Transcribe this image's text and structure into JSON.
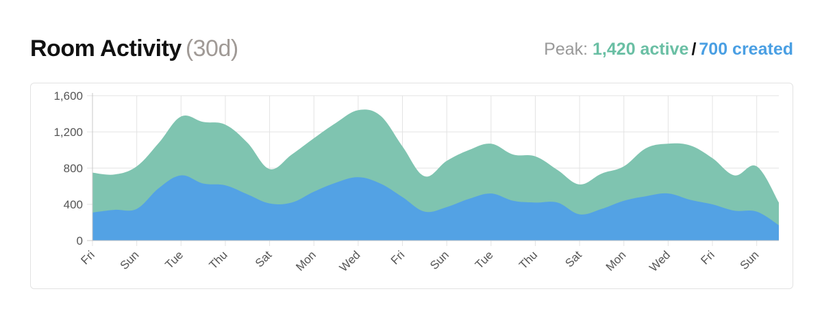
{
  "header": {
    "title": "Room Activity",
    "range": "(30d)",
    "peak_label": "Peak:",
    "peak_active": "1,420 active",
    "peak_sep": "/",
    "peak_created": "700 created"
  },
  "colors": {
    "active": "#7fc4b0",
    "created": "#53a2e4",
    "active_text": "#6abfa4",
    "created_text": "#4a9fe3"
  },
  "chart_data": {
    "type": "area",
    "title": "Room Activity",
    "xlabel": "",
    "ylabel": "",
    "ylim": [
      0,
      1600
    ],
    "yticks": [
      0,
      400,
      800,
      1200,
      1600
    ],
    "ytick_labels": [
      "0",
      "400",
      "800",
      "1,200",
      "1,600"
    ],
    "grid": true,
    "categories": [
      "Fri",
      "Sat",
      "Sun",
      "Mon",
      "Tue",
      "Wed",
      "Thu",
      "Fri",
      "Sat",
      "Sun",
      "Mon",
      "Tue",
      "Wed",
      "Thu",
      "Fri",
      "Sat",
      "Sun",
      "Mon",
      "Tue",
      "Wed",
      "Thu",
      "Fri",
      "Sat",
      "Sun",
      "Mon",
      "Tue",
      "Wed",
      "Thu",
      "Fri",
      "Sat",
      "Sun",
      "Mon"
    ],
    "xtick_labels": [
      "Fri",
      "Sun",
      "Tue",
      "Thu",
      "Sat",
      "Mon",
      "Wed",
      "Fri",
      "Sun",
      "Tue",
      "Thu",
      "Sat",
      "Mon",
      "Wed",
      "Fri",
      "Sun"
    ],
    "series": [
      {
        "name": "active",
        "values": [
          750,
          730,
          820,
          1080,
          1370,
          1310,
          1280,
          1080,
          790,
          950,
          1130,
          1300,
          1440,
          1380,
          1040,
          710,
          880,
          1000,
          1070,
          950,
          930,
          780,
          620,
          740,
          820,
          1020,
          1070,
          1050,
          910,
          720,
          820,
          420
        ]
      },
      {
        "name": "created",
        "values": [
          310,
          340,
          350,
          580,
          720,
          630,
          610,
          510,
          410,
          420,
          540,
          640,
          700,
          630,
          480,
          320,
          370,
          460,
          520,
          440,
          420,
          420,
          290,
          350,
          440,
          490,
          520,
          450,
          400,
          330,
          320,
          170
        ]
      }
    ]
  }
}
